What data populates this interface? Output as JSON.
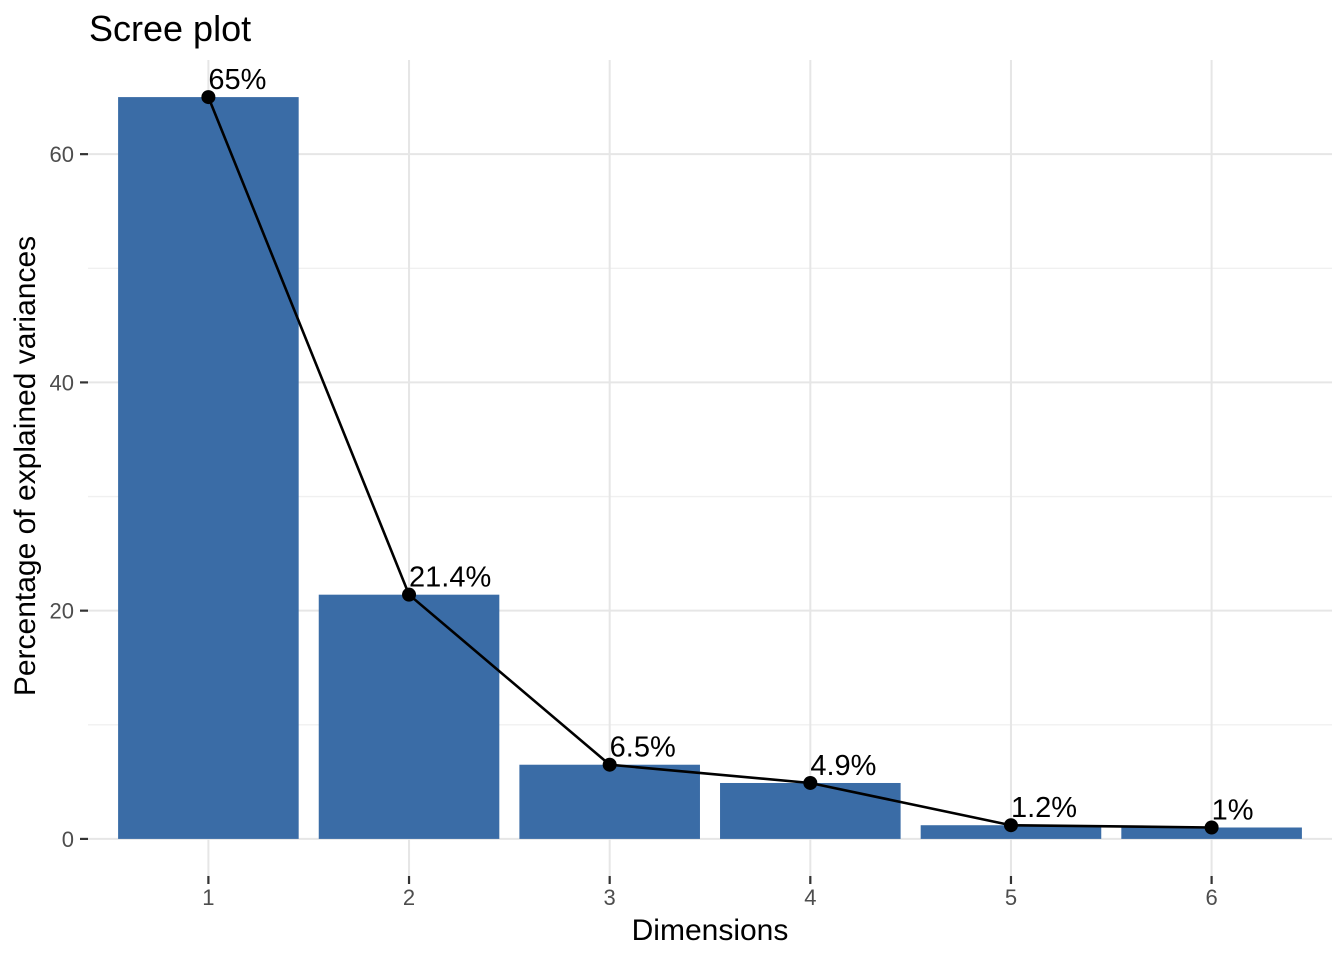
{
  "chart_data": {
    "type": "bar",
    "title": "Scree plot",
    "xlabel": "Dimensions",
    "ylabel": "Percentage of explained variances",
    "categories": [
      "1",
      "2",
      "3",
      "4",
      "5",
      "6"
    ],
    "values": [
      65,
      21.4,
      6.5,
      4.9,
      1.2,
      1
    ],
    "point_labels": [
      "65%",
      "21.4%",
      "6.5%",
      "4.9%",
      "1.2%",
      "1%"
    ],
    "overlay_line": true,
    "legend_position": "none",
    "grid": true,
    "xlim": [
      0.4,
      6.6
    ],
    "ylim": [
      -3.25,
      68.25
    ],
    "yticks": [
      0,
      20,
      40,
      60
    ],
    "ytick_labels": [
      "0",
      "20",
      "40",
      "60"
    ],
    "minor_yticks": [
      10,
      30,
      50
    ],
    "bar_width": 0.9,
    "colors": {
      "bar_fill": "#3A6CA6",
      "line": "#000000",
      "point": "#000000",
      "label_text": "#000000",
      "grid_major": "#E6E6E6",
      "grid_minor": "#F0F0F0",
      "tick_mark": "#333333",
      "tick_label": "#4D4D4D",
      "background": "#FFFFFF"
    }
  }
}
